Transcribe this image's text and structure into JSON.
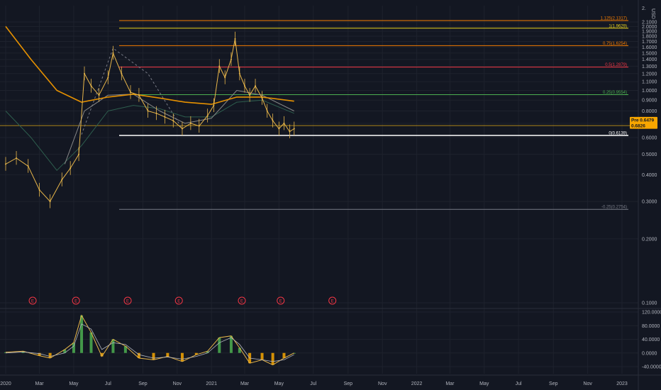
{
  "chart_data": [
    {
      "type": "line",
      "currency": "USD",
      "y_scale": "log",
      "y_ticks": [
        "0.1000",
        "0.2000",
        "0.3000",
        "0.4000",
        "0.5000",
        "0.6000",
        "0.7000",
        "0.8000",
        "0.9000",
        "1.0000",
        "1.1000",
        "1.2000",
        "1.3000",
        "1.4000",
        "1.5000",
        "1.6000",
        "1.7000",
        "1.8000",
        "1.9000",
        "2.0000",
        "2.1000"
      ],
      "y_tick_values": [
        0.1,
        0.2,
        0.3,
        0.4,
        0.5,
        0.6,
        0.7,
        0.8,
        0.9,
        1.0,
        1.1,
        1.2,
        1.3,
        1.4,
        1.5,
        1.6,
        1.7,
        1.8,
        1.9,
        2.0,
        2.1
      ],
      "y_top_label": "2.",
      "x_ticks": [
        "2020",
        "Mar",
        "May",
        "Jul",
        "Sep",
        "Nov",
        "2021",
        "Mar",
        "May",
        "Jul",
        "Sep",
        "Nov",
        "2022",
        "Mar",
        "May",
        "Jul",
        "Sep",
        "Nov",
        "2023"
      ],
      "x_tick_dates": [
        "2020-01-01",
        "2020-03-01",
        "2020-05-01",
        "2020-07-01",
        "2020-09-01",
        "2020-11-01",
        "2021-01-01",
        "2021-03-01",
        "2021-05-01",
        "2021-07-01",
        "2021-09-01",
        "2021-11-01",
        "2022-01-01",
        "2022-03-01",
        "2022-05-01",
        "2022-07-01",
        "2022-09-01",
        "2022-11-01",
        "2023-01-01"
      ],
      "fib_levels": [
        {
          "label": "0(0.6139)",
          "value": 0.6139,
          "color": "#ffffff"
        },
        {
          "label": "0.25(0.9554)",
          "value": 0.9554,
          "color": "#4caf50"
        },
        {
          "label": "0.5(1.2879)",
          "value": 1.2879,
          "color": "#f23645"
        },
        {
          "label": "0.75(1.6254)",
          "value": 1.6254,
          "color": "#f57c00"
        },
        {
          "label": "1(1.9629)",
          "value": 1.9629,
          "color": "#e6d21e"
        },
        {
          "label": "1.125(2.1317)",
          "value": 2.1317,
          "color": "#f57c00"
        },
        {
          "label": "-0.25(0.2754)",
          "value": 0.2754,
          "color": "#787b86"
        }
      ],
      "horizontal_line": {
        "value": 0.6826,
        "color": "#d4a017"
      },
      "price_tags": [
        {
          "label": "Pre",
          "price": "0.6479",
          "color": "#f7a600"
        },
        {
          "label": "",
          "price": "0.6826",
          "color": "#f7a600"
        }
      ],
      "earnings_markers": [
        "2020-02-18",
        "2020-05-05",
        "2020-08-05",
        "2020-11-04",
        "2021-02-24",
        "2021-05-04",
        "2021-08-04"
      ],
      "earnings_label": "E",
      "price_series": {
        "dates": [
          "2020-01-01",
          "2020-01-20",
          "2020-02-10",
          "2020-03-01",
          "2020-03-20",
          "2020-04-10",
          "2020-04-25",
          "2020-05-10",
          "2020-05-20",
          "2020-06-01",
          "2020-06-15",
          "2020-07-01",
          "2020-07-10",
          "2020-07-25",
          "2020-08-10",
          "2020-08-25",
          "2020-09-10",
          "2020-09-25",
          "2020-10-10",
          "2020-10-25",
          "2020-11-10",
          "2020-11-25",
          "2020-12-10",
          "2020-12-25",
          "2021-01-05",
          "2021-01-15",
          "2021-01-25",
          "2021-02-05",
          "2021-02-12",
          "2021-02-20",
          "2021-03-01",
          "2021-03-10",
          "2021-03-20",
          "2021-04-01",
          "2021-04-10",
          "2021-04-20",
          "2021-05-01",
          "2021-05-10",
          "2021-05-20",
          "2021-05-28"
        ],
        "values": [
          0.45,
          0.48,
          0.44,
          0.34,
          0.3,
          0.38,
          0.43,
          0.5,
          1.2,
          1.05,
          0.95,
          1.15,
          1.5,
          1.2,
          0.98,
          0.95,
          0.8,
          0.78,
          0.75,
          0.72,
          0.66,
          0.7,
          0.68,
          0.76,
          0.85,
          1.3,
          1.15,
          1.4,
          1.75,
          1.2,
          1.05,
          0.95,
          1.05,
          0.92,
          0.8,
          0.72,
          0.66,
          0.7,
          0.64,
          0.66
        ]
      },
      "ma_slow": {
        "dates": [
          "2020-01-01",
          "2020-02-15",
          "2020-04-01",
          "2020-05-15",
          "2020-07-01",
          "2020-08-15",
          "2020-10-01",
          "2020-11-15",
          "2021-01-01",
          "2021-02-15",
          "2021-04-01",
          "2021-05-28"
        ],
        "values": [
          2.0,
          1.4,
          1.0,
          0.88,
          0.93,
          0.96,
          0.92,
          0.88,
          0.86,
          0.93,
          0.93,
          0.89
        ]
      },
      "ma_mid": {
        "dates": [
          "2020-04-15",
          "2020-05-20",
          "2020-07-01",
          "2020-08-15",
          "2020-10-01",
          "2020-11-15",
          "2021-01-01",
          "2021-02-15",
          "2021-04-01",
          "2021-05-28"
        ],
        "values": [
          0.45,
          0.8,
          0.95,
          0.96,
          0.8,
          0.7,
          0.74,
          1.0,
          0.95,
          0.8
        ]
      },
      "ma_green": {
        "dates": [
          "2020-01-01",
          "2020-02-15",
          "2020-04-01",
          "2020-05-15",
          "2020-07-01",
          "2020-08-15",
          "2020-10-01",
          "2020-11-15",
          "2021-01-01",
          "2021-02-15",
          "2021-04-01",
          "2021-05-28"
        ],
        "values": [
          0.8,
          0.6,
          0.42,
          0.55,
          0.8,
          0.85,
          0.82,
          0.75,
          0.75,
          0.88,
          0.9,
          0.78
        ]
      },
      "projection": {
        "dates": [
          "2020-05-15",
          "2020-07-10",
          "2020-09-10",
          "2020-11-10"
        ],
        "values": [
          0.62,
          1.58,
          1.2,
          0.66
        ]
      }
    },
    {
      "type": "area",
      "series_role": "oscillator",
      "y_ticks": [
        "-40.0000",
        "0.0000",
        "40.0000",
        "80.0000",
        "120.0000"
      ],
      "y_tick_values": [
        -40,
        0,
        40,
        80,
        120
      ],
      "dates": [
        "2020-01-01",
        "2020-02-01",
        "2020-03-01",
        "2020-03-20",
        "2020-04-15",
        "2020-05-01",
        "2020-05-15",
        "2020-06-01",
        "2020-06-20",
        "2020-07-10",
        "2020-08-01",
        "2020-08-25",
        "2020-09-20",
        "2020-10-15",
        "2020-11-10",
        "2020-12-05",
        "2020-12-25",
        "2021-01-15",
        "2021-02-05",
        "2021-02-20",
        "2021-03-10",
        "2021-04-01",
        "2021-04-20",
        "2021-05-10",
        "2021-05-28"
      ],
      "values": [
        2,
        5,
        -8,
        -15,
        10,
        30,
        110,
        60,
        -10,
        40,
        20,
        -15,
        -20,
        -10,
        -25,
        -5,
        5,
        45,
        50,
        15,
        -30,
        -20,
        -35,
        -15,
        0
      ],
      "signal": [
        0,
        3,
        -2,
        -10,
        0,
        20,
        85,
        70,
        10,
        30,
        25,
        -5,
        -15,
        -12,
        -18,
        -10,
        0,
        30,
        45,
        25,
        -15,
        -20,
        -25,
        -20,
        -5
      ]
    }
  ]
}
